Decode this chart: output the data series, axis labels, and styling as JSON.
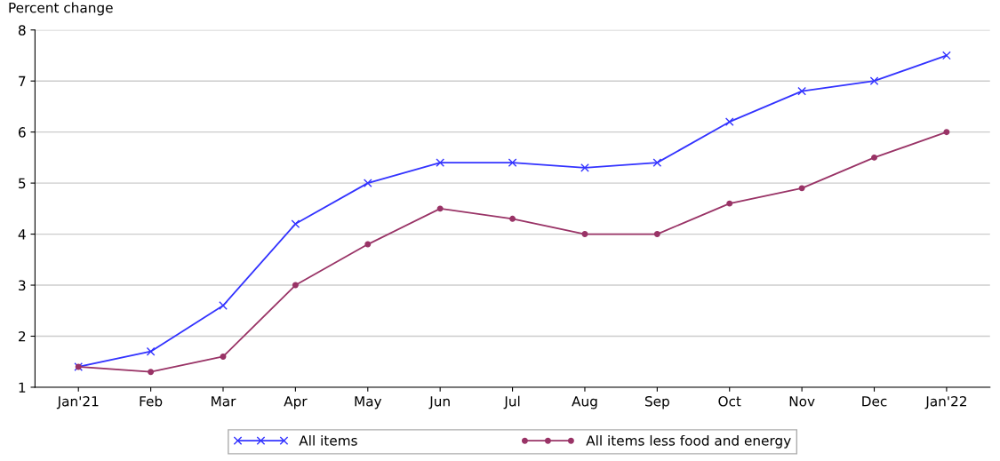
{
  "chart_data": {
    "type": "line",
    "ylabel": "Percent change",
    "categories": [
      "Jan'21",
      "Feb",
      "Mar",
      "Apr",
      "May",
      "Jun",
      "Jul",
      "Aug",
      "Sep",
      "Oct",
      "Nov",
      "Dec",
      "Jan'22"
    ],
    "series": [
      {
        "name": "All items",
        "color": "#3333ff",
        "marker": "cross",
        "values": [
          1.4,
          1.7,
          2.6,
          4.2,
          5.0,
          5.4,
          5.4,
          5.3,
          5.4,
          6.2,
          6.8,
          7.0,
          7.5
        ]
      },
      {
        "name": "All items less food and energy",
        "color": "#993366",
        "marker": "circle",
        "values": [
          1.4,
          1.3,
          1.6,
          3.0,
          3.8,
          4.5,
          4.3,
          4.0,
          4.0,
          4.6,
          4.9,
          5.5,
          6.0
        ]
      }
    ],
    "ylim": [
      1,
      8
    ],
    "yticks": [
      1,
      2,
      3,
      4,
      5,
      6,
      7,
      8
    ],
    "grid": "y",
    "legend": "bottom",
    "line_style": "solid"
  }
}
